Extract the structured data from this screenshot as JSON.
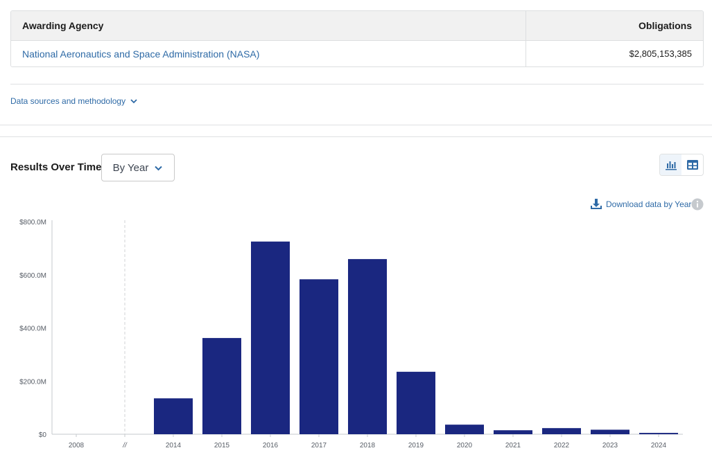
{
  "agency_table": {
    "header": {
      "agency": "Awarding Agency",
      "obligations": "Obligations"
    },
    "rows": [
      {
        "agency": "National Aeronautics and Space Administration (NASA)",
        "obligations": "$2,805,153,385"
      }
    ]
  },
  "methodology": {
    "label": "Data sources and methodology"
  },
  "results": {
    "title": "Results Over Time",
    "period_select": "By Year",
    "download_label": "Download data by Year",
    "view_toggle": [
      "bar-chart-icon",
      "table-icon"
    ],
    "active_view": "bar-chart-icon"
  },
  "colors": {
    "bar": "#1a2780",
    "link": "#2e6aa6",
    "axis_text": "#565c65"
  },
  "chart_data": {
    "type": "bar",
    "title": "",
    "xlabel": "",
    "ylabel": "",
    "categories": [
      "2008",
      "//",
      "2014",
      "2015",
      "2016",
      "2017",
      "2018",
      "2019",
      "2020",
      "2021",
      "2022",
      "2023",
      "2024"
    ],
    "values": [
      0,
      null,
      135,
      362,
      725,
      583,
      659,
      235,
      36,
      15,
      23,
      17,
      5
    ],
    "value_unit": "$M",
    "yticks": [
      "$0",
      "$200.0M",
      "$400.0M",
      "$600.0M",
      "$800.0M"
    ],
    "ylim": [
      0,
      800
    ],
    "axis_break_after": "2008",
    "grid": false,
    "legend": "none"
  }
}
